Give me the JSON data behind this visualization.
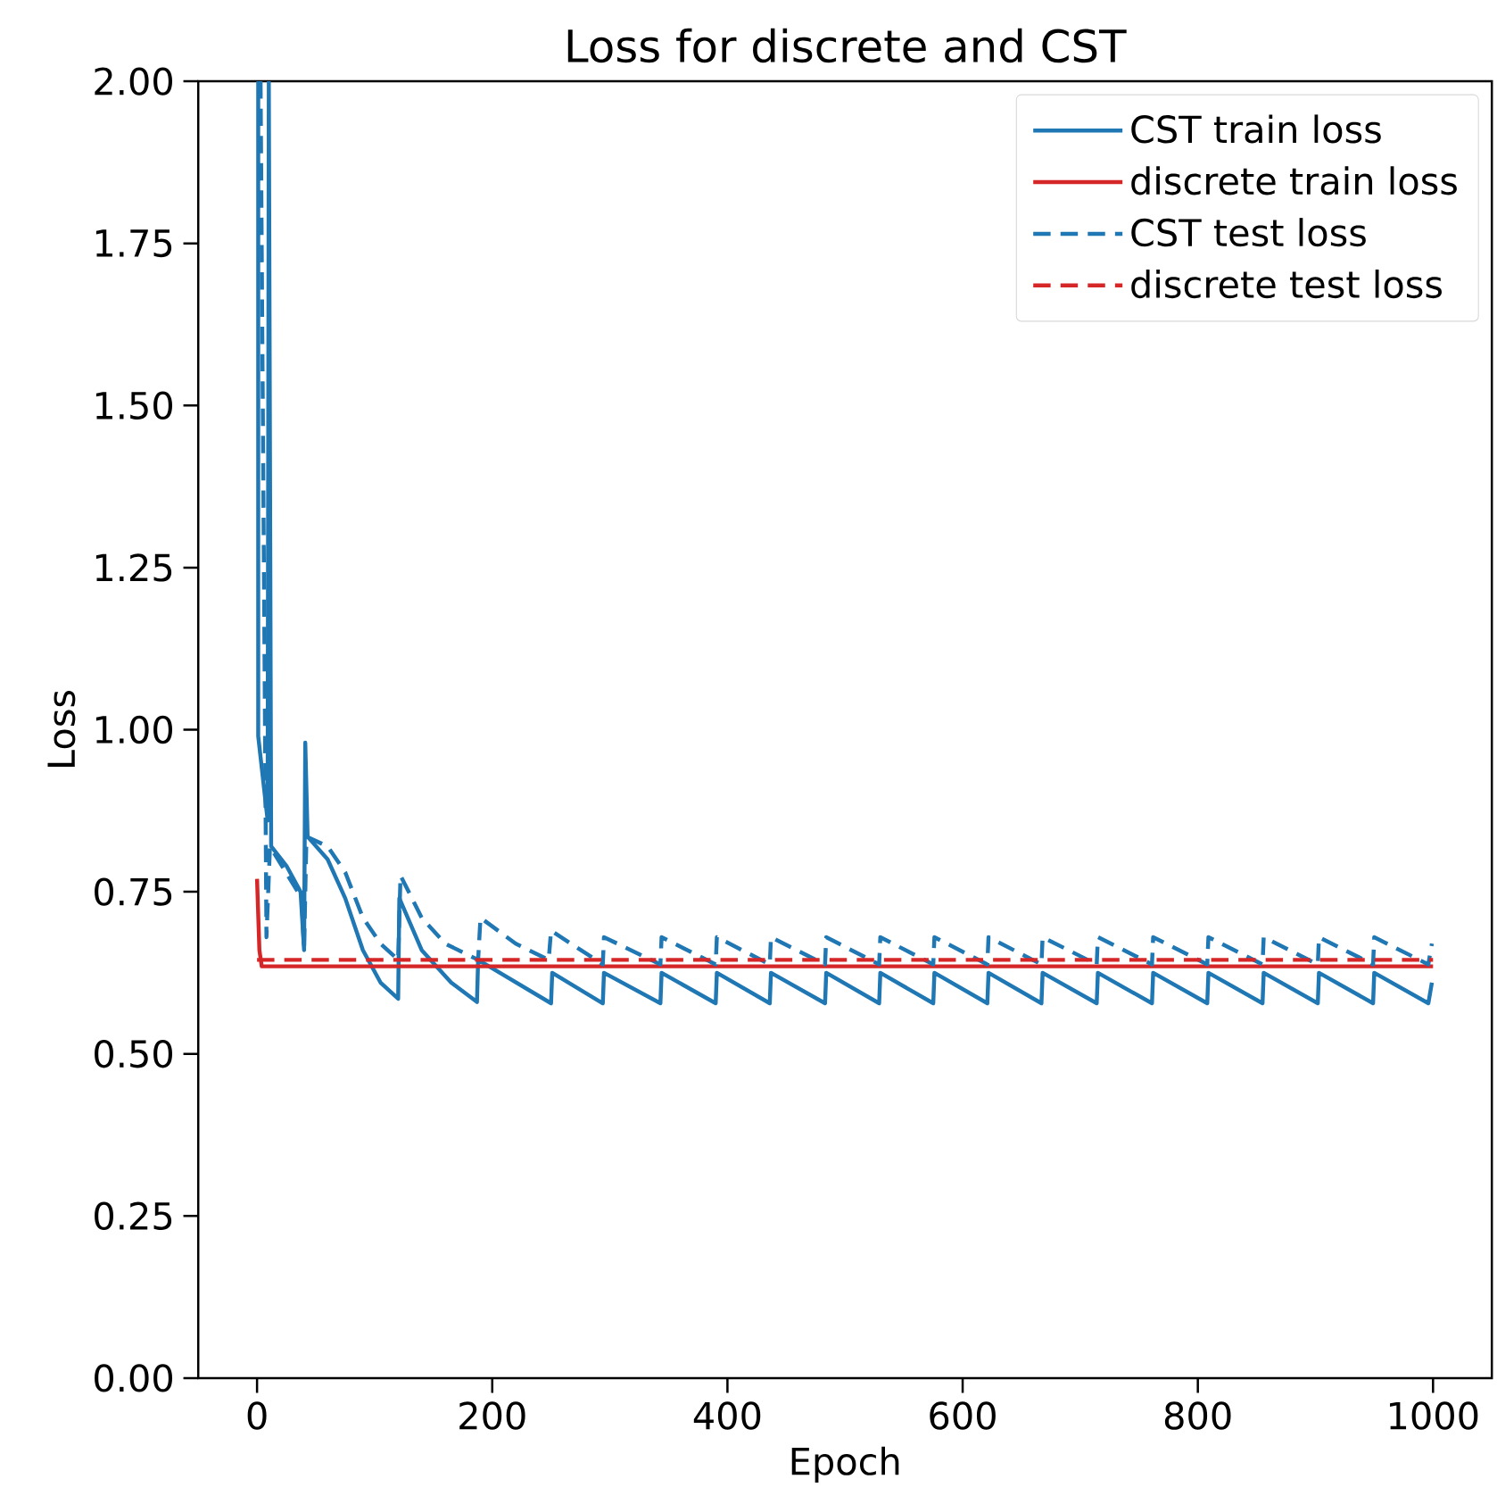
{
  "chart_data": {
    "type": "line",
    "title": "Loss for discrete and CST",
    "xlabel": "Epoch",
    "ylabel": "Loss",
    "xlim": [
      -50,
      1050
    ],
    "xticks": [
      0,
      200,
      400,
      600,
      800,
      1000
    ],
    "ylim": [
      0,
      2
    ],
    "yticks": [
      {
        "value": 0,
        "label": "0.00"
      },
      {
        "value": 0.25,
        "label": "0.25"
      },
      {
        "value": 0.5,
        "label": "0.50"
      },
      {
        "value": 0.75,
        "label": "0.75"
      },
      {
        "value": 1,
        "label": "1.00"
      },
      {
        "value": 1.25,
        "label": "1.25"
      },
      {
        "value": 1.5,
        "label": "1.50"
      },
      {
        "value": 1.75,
        "label": "1.75"
      },
      {
        "value": 2,
        "label": "2.00"
      }
    ],
    "legend": "top right",
    "series": [
      {
        "name": "CST train loss",
        "color": "#1f77b4",
        "line_style": "solid",
        "x": [
          1,
          1,
          9,
          10,
          12,
          25,
          37,
          40,
          41,
          43,
          60,
          75,
          90,
          105,
          120,
          121,
          140,
          165,
          187,
          188,
          250,
          251,
          294,
          295,
          343,
          344,
          390,
          391,
          436,
          437,
          483,
          484,
          529,
          530,
          575,
          576,
          621,
          622,
          667,
          668,
          714,
          715,
          761,
          762,
          808,
          809,
          855,
          856,
          902,
          903,
          949,
          950,
          996,
          999
        ],
        "values": [
          2.0,
          0.99,
          0.86,
          2.0,
          0.82,
          0.79,
          0.75,
          0.66,
          0.98,
          0.835,
          0.8,
          0.74,
          0.66,
          0.61,
          0.585,
          0.74,
          0.66,
          0.61,
          0.58,
          0.645,
          0.578,
          0.625,
          0.578,
          0.625,
          0.578,
          0.625,
          0.578,
          0.625,
          0.578,
          0.625,
          0.578,
          0.625,
          0.578,
          0.625,
          0.578,
          0.625,
          0.578,
          0.625,
          0.578,
          0.625,
          0.578,
          0.625,
          0.578,
          0.625,
          0.578,
          0.625,
          0.578,
          0.625,
          0.578,
          0.625,
          0.578,
          0.625,
          0.578,
          0.61
        ]
      },
      {
        "name": "discrete train loss",
        "color": "#d62728",
        "line_style": "solid",
        "x": [
          0,
          2,
          4,
          1000
        ],
        "values": [
          0.77,
          0.66,
          0.635,
          0.635
        ]
      },
      {
        "name": "CST test loss",
        "color": "#1f77b4",
        "line_style": "dashed",
        "x": [
          3,
          8,
          11,
          38,
          40,
          42,
          60,
          75,
          90,
          105,
          120,
          122,
          140,
          160,
          188,
          190,
          220,
          248,
          250,
          294,
          295,
          343,
          344,
          390,
          391,
          436,
          437,
          483,
          484,
          529,
          530,
          575,
          576,
          621,
          622,
          667,
          668,
          714,
          715,
          761,
          762,
          808,
          809,
          855,
          856,
          902,
          903,
          949,
          950,
          996,
          999
        ],
        "values": [
          2.0,
          0.68,
          0.82,
          0.74,
          0.66,
          0.835,
          0.82,
          0.78,
          0.71,
          0.67,
          0.645,
          0.775,
          0.71,
          0.67,
          0.645,
          0.71,
          0.67,
          0.645,
          0.69,
          0.638,
          0.68,
          0.638,
          0.68,
          0.638,
          0.68,
          0.638,
          0.68,
          0.638,
          0.68,
          0.638,
          0.68,
          0.638,
          0.68,
          0.638,
          0.68,
          0.638,
          0.68,
          0.638,
          0.68,
          0.638,
          0.68,
          0.638,
          0.68,
          0.638,
          0.68,
          0.638,
          0.68,
          0.638,
          0.68,
          0.638,
          0.67
        ]
      },
      {
        "name": "discrete test loss",
        "color": "#d62728",
        "line_style": "dashed",
        "x": [
          0,
          1000
        ],
        "values": [
          0.645,
          0.645
        ]
      }
    ]
  }
}
